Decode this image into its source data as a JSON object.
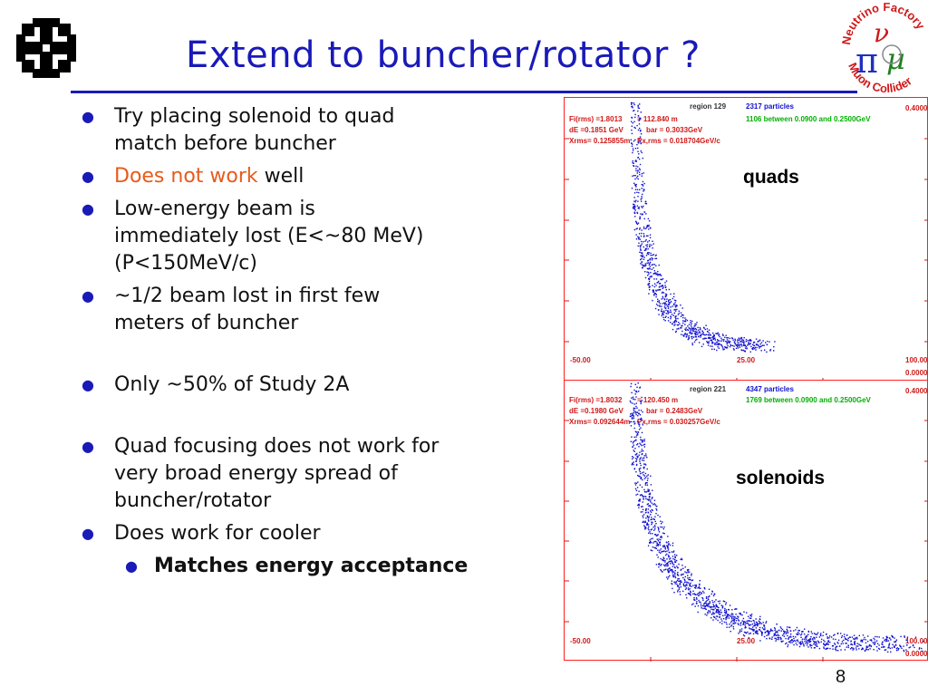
{
  "title": "Extend to buncher/rotator ?",
  "logos": {
    "left": "fermilab-logo",
    "right": {
      "name": "neutrino-factory-muon-collider-logo",
      "text_top": "Neutrino Factory",
      "text_bottom": "Muon Collider"
    }
  },
  "bullets": {
    "b1": "Try placing solenoid to quad",
    "b1b": "match before buncher",
    "b2_highlight": "Does not work",
    "b2_rest": " well",
    "b3": "Low-energy beam is",
    "b3b": "immediately lost (E<~80 MeV)",
    "b3c": "(P<150MeV/c)",
    "b4": "~1/2 beam lost in first few",
    "b4b": "meters of buncher",
    "b5": "Only ~50% of Study 2A",
    "b6": "Quad focusing does not work for",
    "b6b": "very broad energy spread of",
    "b6c": "buncher/rotator",
    "b7": "Does work for cooler",
    "b7_sub": "Matches energy acceptance"
  },
  "plots": [
    {
      "label": "quads",
      "region": "region   129",
      "particles": "2317 particles",
      "info1": "Fi(rms) =1.8013",
      "info1b": "= 112.840 m",
      "info2": "dE =0.1851 GeV",
      "info2b": "bar =  0.3033GeV",
      "info3": "Xrms= 0.125855m",
      "info3b": "Px,rms = 0.018704GeV/c",
      "green": "1106 between 0.0900 and 0.2500GeV",
      "ymax": "0.4000",
      "ymin": "0.0000",
      "x_left": "-50.00",
      "x_mid": "25.00",
      "x_right": "100.00"
    },
    {
      "label": "solenoids",
      "region": "region   221",
      "particles": "4347 particles",
      "info1": "Fi(rms) =1.8032",
      "info1b": "= 120.450 m",
      "info2": "dE =0.1980 GeV",
      "info2b": "bar =  0.2483GeV",
      "info3": "Xrms= 0.092644m",
      "info3b": "Px,rms = 0.030257GeV/c",
      "green": "1769 between 0.0900 and 0.2500GeV",
      "ymax": "0.4000",
      "ymin": "0.0000",
      "x_left": "-50.00",
      "x_mid": "25.00",
      "x_right": "100.00"
    }
  ],
  "colors": {
    "title": "#1a1ab8",
    "highlight": "#e85a1a",
    "scatter": "#1010d0",
    "frame": "#ff2020",
    "green_text": "#00b000"
  },
  "page_number": "8"
}
